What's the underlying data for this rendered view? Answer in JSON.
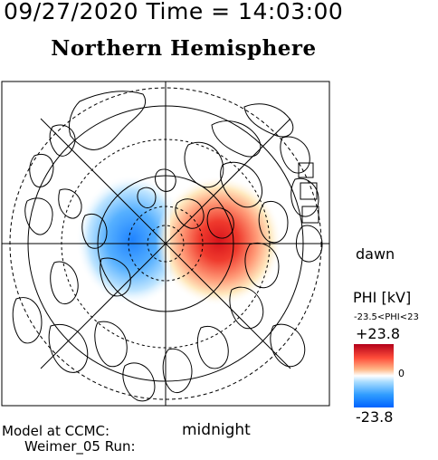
{
  "header": {
    "datetime": "09/27/2020 Time = 14:03:00",
    "title": "Northern Hemisphere"
  },
  "map": {
    "orientation_labels": {
      "bottom": "midnight",
      "right": "dawn"
    },
    "potential_cells": [
      {
        "sign": "negative",
        "color": "#0063ff",
        "location": "dusk side (left of pole)"
      },
      {
        "sign": "positive",
        "color": "#d40015",
        "location": "dawn side (right of pole)"
      }
    ],
    "latitude_circles": "dashed and solid concentric circles",
    "meridian_lines": "8 radial lines every 45 degrees"
  },
  "colorbar": {
    "title": "PHI [kV]",
    "range_label": "-23.5<PHI<23",
    "max_label": "+23.8",
    "zero_label": "0",
    "min_label": "-23.8",
    "colors": {
      "max": "#b2001a",
      "zero": "#ffffff",
      "min": "#0063ff"
    }
  },
  "footer": {
    "model_line1": "Model at CCMC:",
    "model_line2": "Weimer_05 Run:"
  }
}
